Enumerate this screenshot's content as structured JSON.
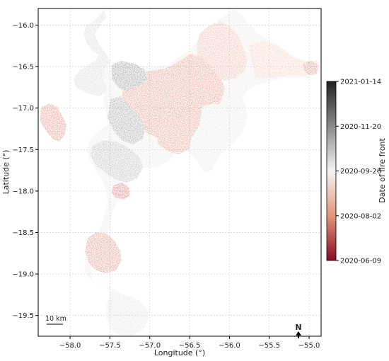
{
  "map": {
    "xlabel": "Longitude (°)",
    "ylabel": "Latitude (°)",
    "xlim": [
      -58.4,
      -54.85
    ],
    "ylim": [
      -19.75,
      -15.8
    ],
    "xticks": [
      {
        "value": -58.0,
        "label": "−58.0"
      },
      {
        "value": -57.5,
        "label": "−57.5"
      },
      {
        "value": -57.0,
        "label": "−57.0"
      },
      {
        "value": -56.5,
        "label": "−56.5"
      },
      {
        "value": -56.0,
        "label": "−56.0"
      },
      {
        "value": -55.5,
        "label": "−55.5"
      },
      {
        "value": -55.0,
        "label": "−55.0"
      }
    ],
    "yticks": [
      {
        "value": -16.0,
        "label": "−16.0"
      },
      {
        "value": -16.5,
        "label": "−16.5"
      },
      {
        "value": -17.0,
        "label": "−17.0"
      },
      {
        "value": -17.5,
        "label": "−17.5"
      },
      {
        "value": -18.0,
        "label": "−18.0"
      },
      {
        "value": -18.5,
        "label": "−18.5"
      },
      {
        "value": -19.0,
        "label": "−19.0"
      },
      {
        "value": -19.5,
        "label": "−19.5"
      }
    ],
    "grid": true,
    "scale_bar_label": "10 km",
    "north_label": "N",
    "colorbar": {
      "label": "Date of fire front",
      "ticks": [
        "2021-01-14",
        "2020-11-20",
        "2020-09-26",
        "2020-08-02",
        "2020-06-09"
      ],
      "colors": [
        "#222222",
        "#8a8a8a",
        "#f4f4f4",
        "#e3957a",
        "#8b0a24"
      ]
    }
  },
  "chart_data": {
    "type": "heatmap",
    "title": "",
    "xlabel": "Longitude (°)",
    "ylabel": "Latitude (°)",
    "xlim": [
      -58.4,
      -54.85
    ],
    "ylim": [
      -19.75,
      -15.8
    ],
    "value_encoding": "date of fire front (color scale 2020-06-09 → 2021-01-14)",
    "regions": [
      {
        "lon": -57.55,
        "lat": -16.2,
        "date": "2020-11-10"
      },
      {
        "lon": -57.35,
        "lat": -16.75,
        "date": "2020-12-15"
      },
      {
        "lon": -57.1,
        "lat": -16.95,
        "date": "2020-07-20"
      },
      {
        "lon": -56.6,
        "lat": -16.75,
        "date": "2020-07-25"
      },
      {
        "lon": -56.0,
        "lat": -16.6,
        "date": "2020-09-01"
      },
      {
        "lon": -55.8,
        "lat": -16.15,
        "date": "2020-09-10"
      },
      {
        "lon": -55.2,
        "lat": -16.5,
        "date": "2020-08-10"
      },
      {
        "lon": -58.2,
        "lat": -17.25,
        "date": "2020-06-25"
      },
      {
        "lon": -57.25,
        "lat": -17.4,
        "date": "2020-12-20"
      },
      {
        "lon": -57.5,
        "lat": -17.7,
        "date": "2020-11-25"
      },
      {
        "lon": -56.55,
        "lat": -17.45,
        "date": "2020-07-30"
      },
      {
        "lon": -56.35,
        "lat": -17.15,
        "date": "2020-10-25"
      },
      {
        "lon": -56.15,
        "lat": -17.85,
        "date": "2020-10-05"
      },
      {
        "lon": -57.3,
        "lat": -18.05,
        "date": "2020-07-10"
      },
      {
        "lon": -57.45,
        "lat": -18.35,
        "date": "2020-10-01"
      },
      {
        "lon": -57.55,
        "lat": -18.85,
        "date": "2020-07-15"
      },
      {
        "lon": -57.2,
        "lat": -19.1,
        "date": "2020-09-20"
      },
      {
        "lon": -57.4,
        "lat": -19.55,
        "date": "2020-10-10"
      }
    ]
  }
}
